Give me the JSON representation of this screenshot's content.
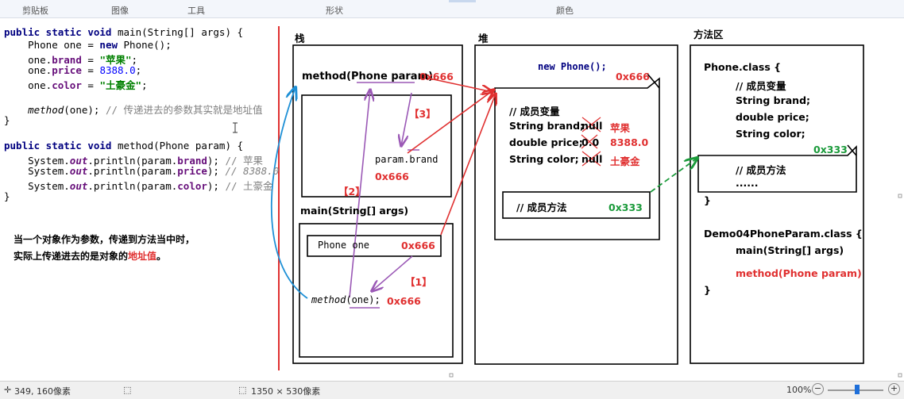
{
  "ribbon": {
    "clipboard": "剪贴板",
    "image": "图像",
    "tools": "工具",
    "shapes": "形状",
    "colors": "颜色"
  },
  "code": {
    "l1a": "public static void",
    "l1b": " main(String[] args) {",
    "l2a": "    Phone one = ",
    "l2b": "new",
    "l2c": " Phone();",
    "l3a": "    one.",
    "l3b": "brand",
    "l3c": " = ",
    "l3d": "\"苹果\"",
    "l3e": ";",
    "l4a": "    one.",
    "l4b": "price",
    "l4c": " = ",
    "l4d": "8388.0",
    "l4e": ";",
    "l5a": "    one.",
    "l5b": "color",
    "l5c": " = ",
    "l5d": "\"土豪金\"",
    "l5e": ";",
    "l6a": "    ",
    "l6b": "method",
    "l6c": "(one); ",
    "l6d": "// 传递进去的参数其实就是地址值",
    "l7": "}",
    "l8a": "public static void",
    "l8b": " method(Phone param) {",
    "l9a": "    System.",
    "l9b": "out",
    "l9c": ".println(param.",
    "l9d": "brand",
    "l9e": "); ",
    "l9f": "// 苹果",
    "l10a": "    System.",
    "l10b": "out",
    "l10c": ".println(param.",
    "l10d": "price",
    "l10e": "); ",
    "l10f": "// 8388.0",
    "l11a": "    System.",
    "l11b": "out",
    "l11c": ".println(param.",
    "l11d": "color",
    "l11e": "); ",
    "l11f": "// 土豪金",
    "l12": "}"
  },
  "note": {
    "line1": "当一个对象作为参数，传递到方法当中时，",
    "line2a": "实际上传递进去的是对象的",
    "line2b": "地址值",
    "line2c": "。"
  },
  "stack": {
    "title": "栈",
    "method_frame": "method(Phone param)",
    "method_addr": "0x666",
    "param_brand": "param.brand",
    "param_addr": "0x666",
    "label3": "【3】",
    "label2": "【2】",
    "label1": "【1】",
    "main_frame": "main(String[] args)",
    "phone_one": "Phone one",
    "phone_one_addr": "0x666",
    "method_call_a": "method",
    "method_call_b": "(one);",
    "method_call_addr": "0x666"
  },
  "heap": {
    "title": "堆",
    "new_phone": "new Phone();",
    "addr": "0x666",
    "member_vars": "// 成员变量",
    "f1_name": "String brand;",
    "f1_old": "null",
    "f1_new": "苹果",
    "f2_name": "double price;",
    "f2_old": "0.0",
    "f2_new": "8388.0",
    "f3_name": "String color;",
    "f3_old": "null",
    "f3_new": "土豪金",
    "member_methods": "// 成员方法",
    "methods_addr": "0x333"
  },
  "method_area": {
    "title": "方法区",
    "phone_class": "Phone.class {",
    "member_vars": "// 成员变量",
    "f1": "String brand;",
    "f2": "double price;",
    "f3": "String color;",
    "addr": "0x333",
    "member_methods": "// 成员方法",
    "dots": "......",
    "close1": "}",
    "demo_class": "Demo04PhoneParam.class {",
    "main": "main(String[] args)",
    "method": "method(Phone param)",
    "close2": "}"
  },
  "status": {
    "coords": "349, 160像素",
    "size": "1350 × 530像素",
    "zoom": "100%"
  },
  "colors": {
    "red": "#e03030",
    "green": "#1a9a3a",
    "purple": "#9b59b6",
    "blue": "#1e90d6"
  }
}
